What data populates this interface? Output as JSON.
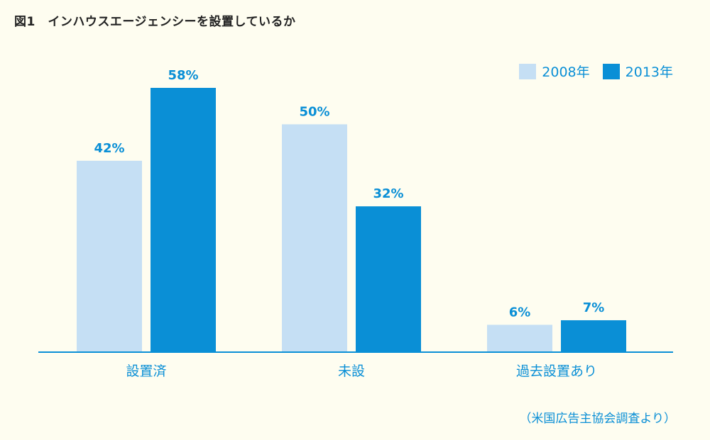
{
  "figure_title": "図1　インハウスエージェンシーを設置しているか",
  "source_note": "（米国広告主協会調査より）",
  "colors": {
    "series_2008": "#c5dff4",
    "series_2013": "#0a8fd6",
    "text_accent": "#0a8fd6",
    "axis": "#0a8fd6",
    "background": "#fefdf0"
  },
  "chart_data": {
    "type": "bar",
    "title": "インハウスエージェンシーを設置しているか",
    "categories": [
      "設置済",
      "未設",
      "過去設置あり"
    ],
    "series": [
      {
        "name": "2008年",
        "values": [
          42,
          50,
          6
        ],
        "labels": [
          "42%",
          "50%",
          "6%"
        ]
      },
      {
        "name": "2013年",
        "values": [
          58,
          32,
          7
        ],
        "labels": [
          "58%",
          "32%",
          "7%"
        ]
      }
    ],
    "unit": "%",
    "ylim": [
      0,
      58
    ],
    "xlabel": "",
    "ylabel": "",
    "grid": false,
    "legend_position": "top-right"
  }
}
